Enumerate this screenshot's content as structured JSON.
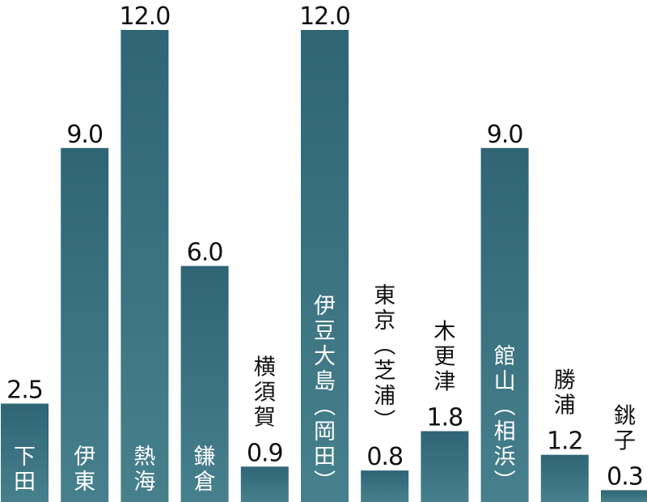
{
  "chart_data": {
    "type": "bar",
    "title": "",
    "xlabel": "",
    "ylabel": "",
    "ylim": [
      0,
      12
    ],
    "grid": false,
    "legend": "none",
    "bar_color": "#3e6e7c",
    "categories": [
      "下田",
      "伊東",
      "熱海",
      "鎌倉",
      "横須賀",
      "伊豆大島(岡田)",
      "東京(芝浦)",
      "木更津",
      "館山(相浜)",
      "勝浦",
      "銚子"
    ],
    "values": [
      2.5,
      9.0,
      12.0,
      6.0,
      0.9,
      12.0,
      0.8,
      1.8,
      9.0,
      1.2,
      0.3
    ],
    "value_labels": [
      "2.5",
      "9.0",
      "12.0",
      "6.0",
      "0.9",
      "12.0",
      "0.8",
      "1.8",
      "9.0",
      "1.2",
      "0.3"
    ]
  }
}
